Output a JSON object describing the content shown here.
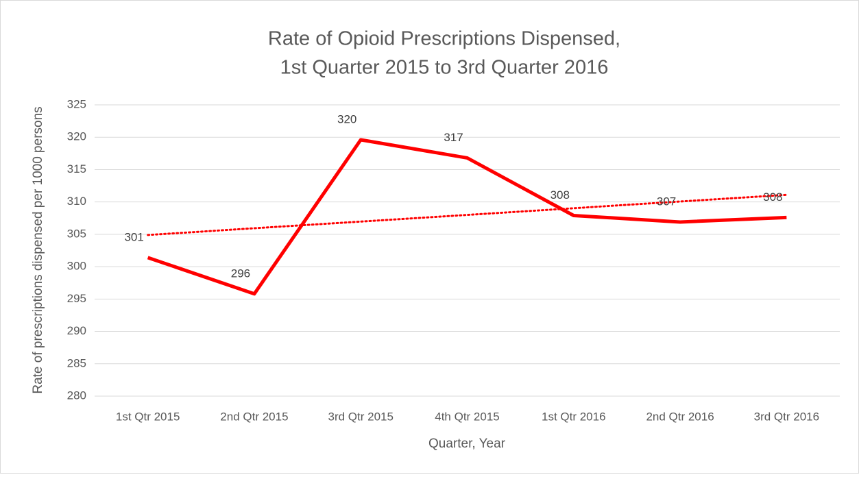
{
  "chart_data": {
    "type": "line",
    "title": [
      "Rate of Opioid Prescriptions Dispensed,",
      "1st Quarter 2015 to 3rd Quarter 2016"
    ],
    "x_label": "Quarter, Year",
    "y_label": "Rate of prescriptions dispensed per 1000 persons",
    "categories": [
      "1st Qtr 2015",
      "2nd Qtr 2015",
      "3rd Qtr 2015",
      "4th Qtr 2015",
      "1st Qtr 2016",
      "2nd Qtr 2016",
      "3rd Qtr 2016"
    ],
    "series": [
      {
        "color": "#ff0000",
        "values": [
          301.4,
          295.8,
          319.6,
          316.8,
          307.9,
          306.9,
          307.6
        ],
        "value_labels": [
          "301",
          "296",
          "320",
          "317",
          "308",
          "307",
          "308"
        ]
      }
    ],
    "trendline": {
      "color": "#ff0000",
      "style": "dotted",
      "values": [
        304.9,
        311.1
      ]
    },
    "ylim": [
      280,
      325
    ],
    "yticks": [
      280,
      285,
      290,
      295,
      300,
      305,
      310,
      315,
      320,
      325
    ],
    "grid": true
  }
}
